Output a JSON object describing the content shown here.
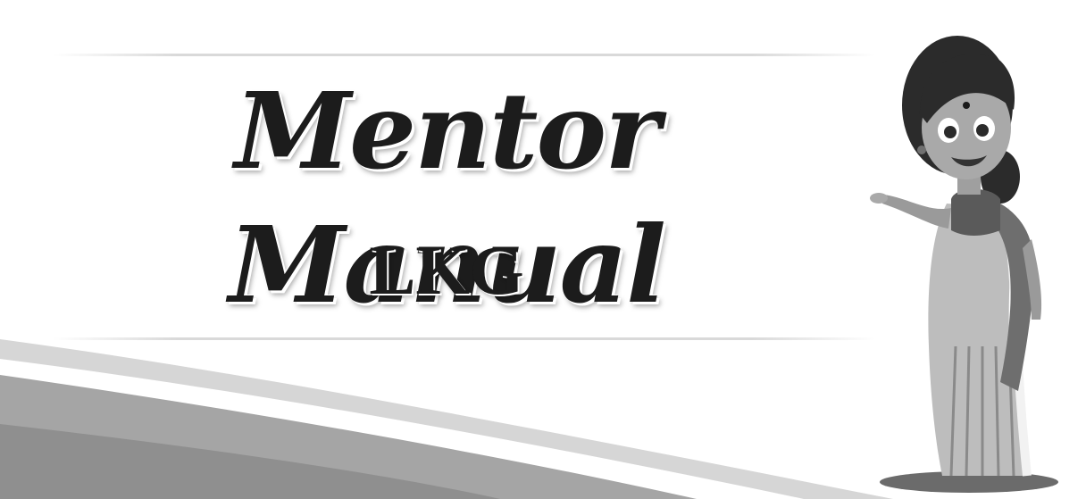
{
  "cover": {
    "title": "Mentor Manual",
    "subtitle": "LKG"
  },
  "colors": {
    "background": "#ffffff",
    "title_text": "#1c1c1c",
    "swoosh_dark": "#9a9a9a",
    "swoosh_light": "#d6d6d6"
  },
  "illustration": {
    "icon": "teacher-in-saree-illustration"
  }
}
